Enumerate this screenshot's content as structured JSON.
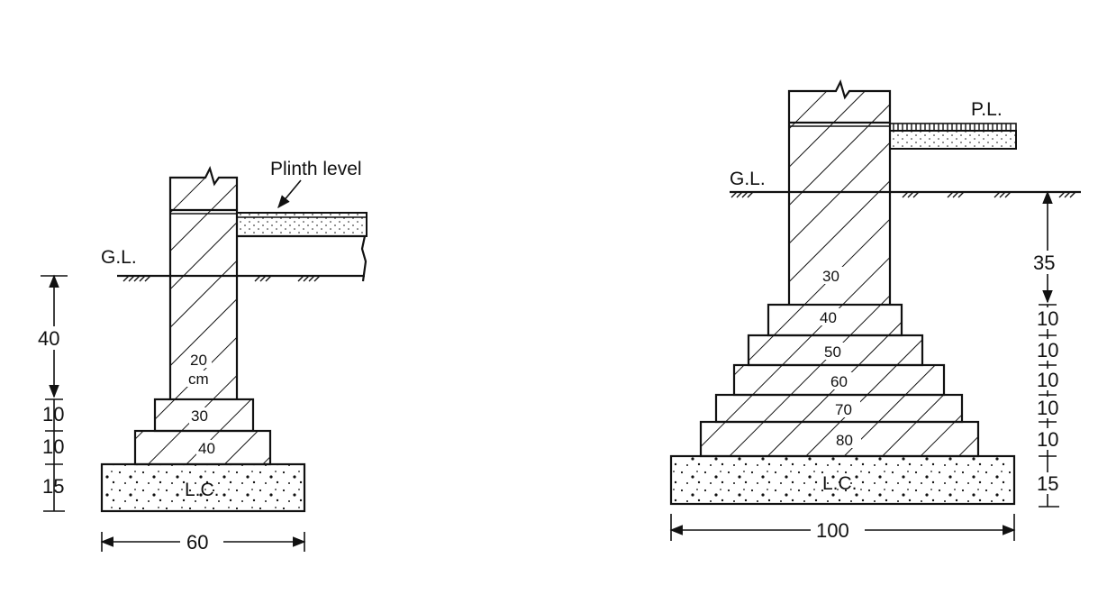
{
  "left_diagram": {
    "plinth_label": "Plinth level",
    "gl_label": "G.L.",
    "widths": {
      "wall": "20",
      "wall_unit": "cm",
      "step1": "30",
      "step2": "40"
    },
    "lc_label": "L.C.",
    "vertical_dims": [
      "40",
      "10",
      "10",
      "15"
    ],
    "base_width": "60"
  },
  "right_diagram": {
    "pl_label": "P.L.",
    "gl_label": "G.L.",
    "widths": [
      "30",
      "40",
      "50",
      "60",
      "70",
      "80"
    ],
    "lc_label": "L.C.",
    "vertical_dims": [
      "35",
      "10",
      "10",
      "10",
      "10",
      "10",
      "15"
    ],
    "base_width": "100"
  }
}
